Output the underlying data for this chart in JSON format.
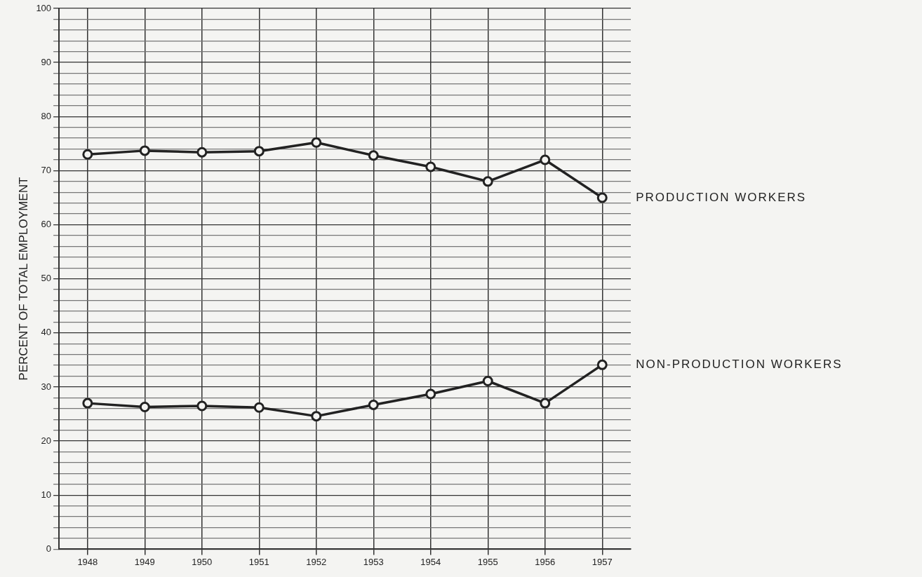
{
  "chart_data": {
    "type": "line",
    "ylabel": "PERCENT OF TOTAL EMPLOYMENT",
    "categories": [
      "1948",
      "1949",
      "1950",
      "1951",
      "1952",
      "1953",
      "1954",
      "1955",
      "1956",
      "1957"
    ],
    "series": [
      {
        "name": "PRODUCTION WORKERS",
        "color": "#222222",
        "values": [
          73,
          73.7,
          73.4,
          73.6,
          75.2,
          72.8,
          70.7,
          68,
          72,
          65
        ]
      },
      {
        "name": "NON-PRODUCTION WORKERS",
        "color": "#222222",
        "values": [
          27,
          26.3,
          26.5,
          26.2,
          24.6,
          26.7,
          28.7,
          31.1,
          27,
          34.1
        ]
      }
    ],
    "ylim": [
      0,
      100
    ],
    "yticks": [
      0,
      {
        "value": 2,
        "label": null
      },
      {
        "value": 4,
        "label": null
      },
      {
        "value": 6,
        "label": null
      },
      {
        "value": 8,
        "label": null
      },
      10,
      {
        "value": 12,
        "label": null
      },
      {
        "value": 14,
        "label": null
      },
      {
        "value": 16,
        "label": null
      },
      {
        "value": 18,
        "label": null
      },
      20,
      {
        "value": 22,
        "label": null
      },
      {
        "value": 24,
        "label": null
      },
      {
        "value": 26,
        "label": null
      },
      {
        "value": 28,
        "label": null
      },
      30,
      {
        "value": 32,
        "label": null
      },
      {
        "value": 34,
        "label": null
      },
      {
        "value": 36,
        "label": null
      },
      {
        "value": 38,
        "label": null
      },
      40,
      {
        "value": 42,
        "label": null
      },
      {
        "value": 44,
        "label": null
      },
      {
        "value": 46,
        "label": null
      },
      {
        "value": 48,
        "label": null
      },
      50,
      {
        "value": 52,
        "label": null
      },
      {
        "value": 54,
        "label": null
      },
      {
        "value": 56,
        "label": null
      },
      {
        "value": 58,
        "label": null
      },
      60,
      {
        "value": 62,
        "label": null
      },
      {
        "value": 64,
        "label": null
      },
      {
        "value": 66,
        "label": null
      },
      {
        "value": 68,
        "label": null
      },
      70,
      {
        "value": 72,
        "label": null
      },
      {
        "value": 74,
        "label": null
      },
      {
        "value": 76,
        "label": null
      },
      {
        "value": 78,
        "label": null
      },
      80,
      {
        "value": 82,
        "label": null
      },
      {
        "value": 84,
        "label": null
      },
      {
        "value": 86,
        "label": null
      },
      {
        "value": 88,
        "label": null
      },
      90,
      {
        "value": 92,
        "label": null
      },
      {
        "value": 94,
        "label": null
      },
      {
        "value": 96,
        "label": null
      },
      {
        "value": 98,
        "label": null
      },
      100
    ],
    "grid": true,
    "legend": false,
    "marker": "circle",
    "line_style": "solid"
  }
}
